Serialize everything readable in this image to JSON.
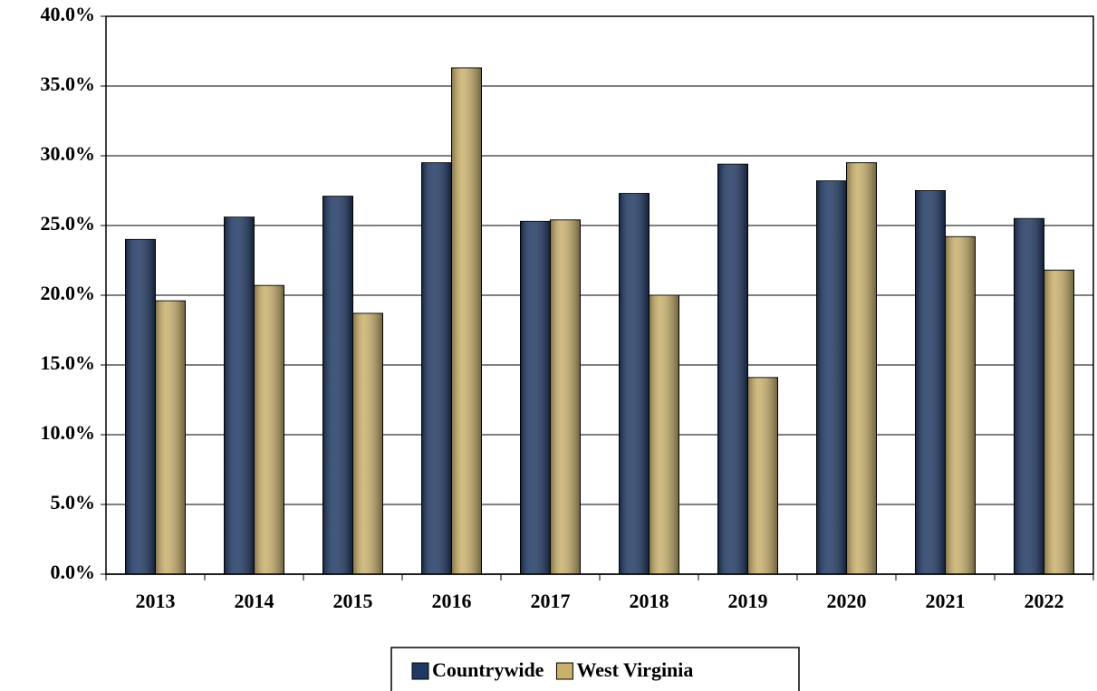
{
  "chart_data": {
    "type": "bar",
    "categories": [
      "2013",
      "2014",
      "2015",
      "2016",
      "2017",
      "2018",
      "2019",
      "2020",
      "2021",
      "2022"
    ],
    "series": [
      {
        "name": "Countrywide",
        "color": "#1f3864",
        "values": [
          24.0,
          25.6,
          27.1,
          29.5,
          25.3,
          27.3,
          29.4,
          28.2,
          27.5,
          25.5
        ]
      },
      {
        "name": "West Virginia",
        "color": "#c9b06b",
        "values": [
          19.6,
          20.7,
          18.7,
          36.3,
          25.4,
          20.0,
          14.1,
          29.5,
          24.2,
          21.8
        ]
      }
    ],
    "ylim": [
      0,
      40
    ],
    "yticks": [
      {
        "value": 0,
        "label": "0.0%"
      },
      {
        "value": 5,
        "label": "5.0%"
      },
      {
        "value": 10,
        "label": "10.0%"
      },
      {
        "value": 15,
        "label": "15.0%"
      },
      {
        "value": 20,
        "label": "20.0%"
      },
      {
        "value": 25,
        "label": "25.0%"
      },
      {
        "value": 30,
        "label": "30.0%"
      },
      {
        "value": 35,
        "label": "35.0%"
      },
      {
        "value": 40,
        "label": "40.0%"
      }
    ],
    "grid": true,
    "legend": "bottom"
  }
}
